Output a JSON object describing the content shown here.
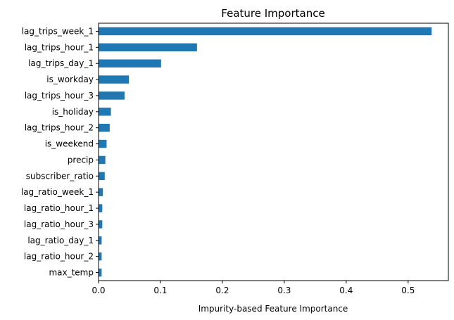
{
  "chart_data": {
    "type": "bar",
    "orientation": "horizontal",
    "title": "Feature Importance",
    "xlabel": "Impurity-based Feature Importance",
    "ylabel": "",
    "xlim": [
      0,
      0.565
    ],
    "xticks": [
      "0.0",
      "0.1",
      "0.2",
      "0.3",
      "0.4",
      "0.5"
    ],
    "grid": false,
    "bar_color": "#1f77b4",
    "categories": [
      "lag_trips_week_1",
      "lag_trips_hour_1",
      "lag_trips_day_1",
      "is_workday",
      "lag_trips_hour_3",
      "is_holiday",
      "lag_trips_hour_2",
      "is_weekend",
      "precip",
      "subscriber_ratio",
      "lag_ratio_week_1",
      "lag_ratio_hour_1",
      "lag_ratio_hour_3",
      "lag_ratio_day_1",
      "lag_ratio_hour_2",
      "max_temp"
    ],
    "values": [
      0.538,
      0.159,
      0.101,
      0.049,
      0.042,
      0.02,
      0.018,
      0.013,
      0.011,
      0.01,
      0.007,
      0.006,
      0.006,
      0.005,
      0.005,
      0.005
    ]
  }
}
